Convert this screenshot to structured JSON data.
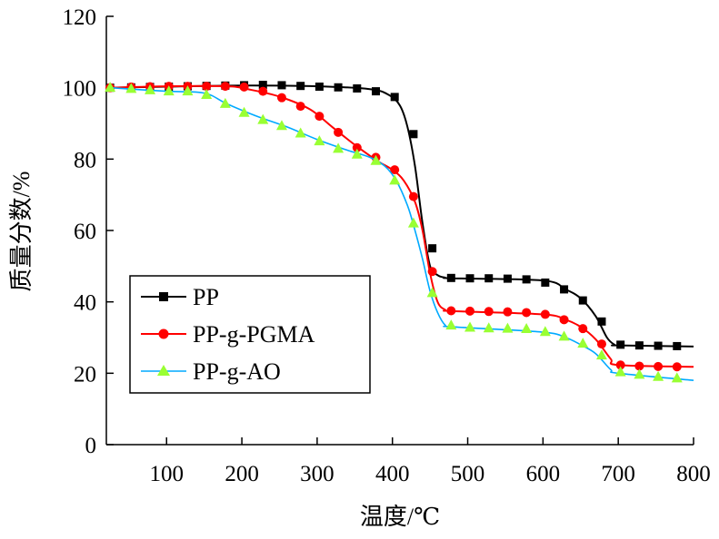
{
  "chart_data": {
    "type": "line",
    "title": "",
    "xlabel": "温度/℃",
    "ylabel": "质量分数/%",
    "xlim": [
      20,
      800
    ],
    "ylim": [
      0,
      120
    ],
    "xticks": [
      100,
      200,
      300,
      400,
      500,
      600,
      700,
      800
    ],
    "xtick_labels": [
      "100",
      "200",
      "300",
      "400",
      "500",
      "600",
      "700",
      "800"
    ],
    "yticks": [
      0,
      20,
      40,
      60,
      80,
      100,
      120
    ],
    "ytick_labels": [
      "0",
      "20",
      "40",
      "60",
      "80",
      "100",
      "120"
    ],
    "grid": false,
    "legend_position": "bottom-left",
    "series": [
      {
        "name": "PP",
        "color": "#000000",
        "marker": "square",
        "curve": [
          [
            25,
            100
          ],
          [
            100,
            100.3
          ],
          [
            200,
            100.6
          ],
          [
            300,
            100.4
          ],
          [
            370,
            99.6
          ],
          [
            395,
            98
          ],
          [
            410,
            95
          ],
          [
            420,
            89
          ],
          [
            430,
            78
          ],
          [
            440,
            62
          ],
          [
            450,
            50
          ],
          [
            460,
            47.5
          ],
          [
            470,
            46.8
          ],
          [
            480,
            46.6
          ],
          [
            600,
            46
          ],
          [
            630,
            43.5
          ],
          [
            650,
            41
          ],
          [
            670,
            36
          ],
          [
            685,
            30
          ],
          [
            695,
            28
          ],
          [
            700,
            27.8
          ],
          [
            800,
            27.5
          ]
        ],
        "points": [
          [
            25,
            100
          ],
          [
            53,
            100.1
          ],
          [
            78,
            100.2
          ],
          [
            103,
            100.3
          ],
          [
            128,
            100.4
          ],
          [
            153,
            100.5
          ],
          [
            178,
            100.6
          ],
          [
            203,
            100.7
          ],
          [
            228,
            100.8
          ],
          [
            253,
            100.7
          ],
          [
            278,
            100.5
          ],
          [
            303,
            100.3
          ],
          [
            328,
            100.1
          ],
          [
            353,
            99.8
          ],
          [
            378,
            99
          ],
          [
            403,
            97.4
          ],
          [
            428,
            87
          ],
          [
            453,
            55
          ],
          [
            478,
            46.7
          ],
          [
            503,
            46.6
          ],
          [
            528,
            46.6
          ],
          [
            553,
            46.5
          ],
          [
            578,
            46.3
          ],
          [
            603,
            45.4
          ],
          [
            628,
            43.5
          ],
          [
            653,
            40.4
          ],
          [
            678,
            34.5
          ],
          [
            703,
            28
          ],
          [
            728,
            27.8
          ],
          [
            753,
            27.7
          ],
          [
            778,
            27.6
          ]
        ]
      },
      {
        "name": "PP-g-PGMA",
        "color": "#ff0000",
        "marker": "circle",
        "curve": [
          [
            25,
            100
          ],
          [
            100,
            100.4
          ],
          [
            180,
            100.4
          ],
          [
            210,
            99.5
          ],
          [
            250,
            97.5
          ],
          [
            290,
            94
          ],
          [
            320,
            89
          ],
          [
            350,
            84
          ],
          [
            380,
            79.5
          ],
          [
            400,
            77
          ],
          [
            415,
            74
          ],
          [
            430,
            68
          ],
          [
            440,
            60
          ],
          [
            450,
            48
          ],
          [
            460,
            40
          ],
          [
            470,
            37.8
          ],
          [
            480,
            37.4
          ],
          [
            600,
            36.5
          ],
          [
            630,
            35
          ],
          [
            650,
            33
          ],
          [
            670,
            29.5
          ],
          [
            690,
            24
          ],
          [
            700,
            22.3
          ],
          [
            800,
            21.8
          ]
        ],
        "points": [
          [
            25,
            100
          ],
          [
            53,
            100.2
          ],
          [
            78,
            100.3
          ],
          [
            103,
            100.4
          ],
          [
            128,
            100.4
          ],
          [
            153,
            100.4
          ],
          [
            178,
            100.4
          ],
          [
            203,
            100.2
          ],
          [
            228,
            99
          ],
          [
            253,
            97.2
          ],
          [
            278,
            94.8
          ],
          [
            303,
            92
          ],
          [
            328,
            87.5
          ],
          [
            353,
            83.2
          ],
          [
            378,
            80.5
          ],
          [
            403,
            77
          ],
          [
            428,
            69.5
          ],
          [
            453,
            48.5
          ],
          [
            478,
            37.5
          ],
          [
            503,
            37.4
          ],
          [
            528,
            37.3
          ],
          [
            553,
            37.2
          ],
          [
            578,
            37
          ],
          [
            603,
            36.5
          ],
          [
            628,
            35
          ],
          [
            653,
            32.5
          ],
          [
            678,
            28.2
          ],
          [
            703,
            22.3
          ],
          [
            728,
            22
          ],
          [
            753,
            21.9
          ],
          [
            778,
            21.8
          ]
        ]
      },
      {
        "name": "PP-g-AO",
        "color": "#00aaff",
        "marker": "triangle",
        "marker_fill": "#99ff33",
        "curve": [
          [
            25,
            100
          ],
          [
            100,
            99
          ],
          [
            150,
            98.5
          ],
          [
            180,
            95.5
          ],
          [
            220,
            92
          ],
          [
            260,
            89
          ],
          [
            300,
            85.5
          ],
          [
            340,
            82.5
          ],
          [
            370,
            80.5
          ],
          [
            390,
            78
          ],
          [
            405,
            74
          ],
          [
            420,
            67
          ],
          [
            430,
            60
          ],
          [
            440,
            52
          ],
          [
            450,
            43
          ],
          [
            460,
            37
          ],
          [
            470,
            33.5
          ],
          [
            480,
            33
          ],
          [
            600,
            31.5
          ],
          [
            630,
            30
          ],
          [
            650,
            28
          ],
          [
            670,
            25.5
          ],
          [
            690,
            21
          ],
          [
            700,
            20
          ],
          [
            800,
            18
          ]
        ],
        "points": [
          [
            25,
            100
          ],
          [
            53,
            99.7
          ],
          [
            78,
            99.3
          ],
          [
            103,
            99
          ],
          [
            128,
            99
          ],
          [
            153,
            98
          ],
          [
            178,
            95.5
          ],
          [
            203,
            93
          ],
          [
            228,
            91
          ],
          [
            253,
            89.3
          ],
          [
            278,
            87.2
          ],
          [
            303,
            85
          ],
          [
            328,
            82.9
          ],
          [
            353,
            81.3
          ],
          [
            378,
            79.5
          ],
          [
            403,
            74
          ],
          [
            428,
            62
          ],
          [
            453,
            42.5
          ],
          [
            478,
            33.4
          ],
          [
            503,
            32.8
          ],
          [
            528,
            32.6
          ],
          [
            553,
            32.5
          ],
          [
            578,
            32.4
          ],
          [
            603,
            31.6
          ],
          [
            628,
            30.3
          ],
          [
            653,
            28.3
          ],
          [
            678,
            25
          ],
          [
            703,
            20.3
          ],
          [
            728,
            19.6
          ],
          [
            753,
            19
          ],
          [
            778,
            18.6
          ]
        ]
      }
    ]
  }
}
